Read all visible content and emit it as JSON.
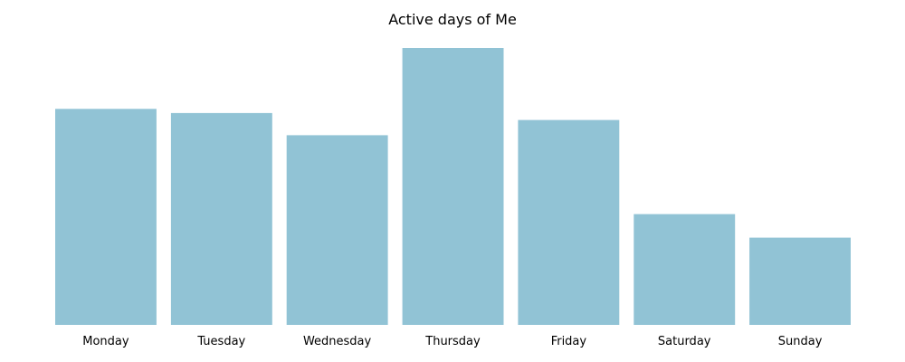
{
  "chart_data": {
    "type": "bar",
    "title": "Active days of Me",
    "xlabel": "",
    "ylabel": "",
    "categories": [
      "Monday",
      "Tuesday",
      "Wednesday",
      "Thursday",
      "Friday",
      "Saturday",
      "Sunday"
    ],
    "values": [
      78,
      76.5,
      68.5,
      100,
      74,
      40,
      31.5
    ],
    "ylim": [
      0,
      100
    ],
    "grid": false,
    "axes_visible": false,
    "bar_color": "#91c3d5"
  }
}
